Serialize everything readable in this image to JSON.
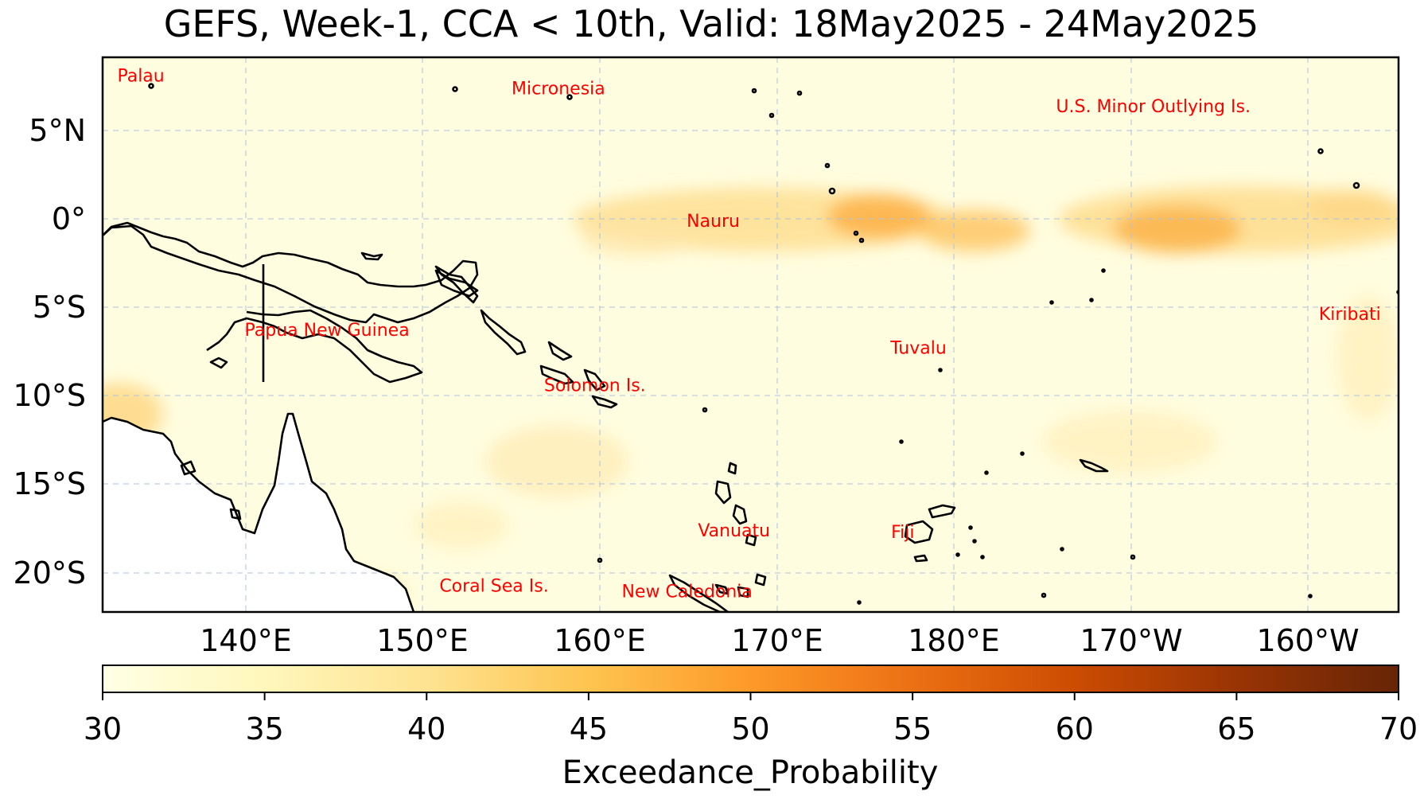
{
  "title": "GEFS, Week-1, CCA < 10th, Valid: 18May2025 - 24May2025",
  "map": {
    "lat_ticks": [
      "5°N",
      "0°",
      "5°S",
      "10°S",
      "15°S",
      "20°S"
    ],
    "lon_ticks": [
      "140°E",
      "150°E",
      "160°E",
      "170°E",
      "180°E",
      "170°W",
      "160°W"
    ],
    "countries": [
      {
        "name": "Palau",
        "lon": 134.2,
        "lat": 7.9
      },
      {
        "name": "Micronesia",
        "lon": 158.2,
        "lat": 7.2
      },
      {
        "name": "U.S. Minor Outlying Is.",
        "lon": -167.6,
        "lat": 6.2
      },
      {
        "name": "Nauru",
        "lon": 167.1,
        "lat": -0.2
      },
      {
        "name": "Papua New Guinea",
        "lon": 144.9,
        "lat": -6.3
      },
      {
        "name": "Kiribati",
        "lon": -156.3,
        "lat": -5.4
      },
      {
        "name": "Tuvalu",
        "lon": 178.9,
        "lat": -7.3
      },
      {
        "name": "Solomon Is.",
        "lon": 160.3,
        "lat": -9.4
      },
      {
        "name": "Vanuatu",
        "lon": 168.3,
        "lat": -17.5
      },
      {
        "name": "Fiji",
        "lon": 178.0,
        "lat": -17.6
      },
      {
        "name": "Coral Sea Is.",
        "lon": 154.5,
        "lat": -20.6
      },
      {
        "name": "New Caledonia",
        "lon": 165.6,
        "lat": -20.9
      }
    ],
    "land_color": "#ffffff",
    "ocean_base_color": "#fffde0"
  },
  "colorbar": {
    "label": "Exceedance_Probability",
    "ticks": [
      "30",
      "35",
      "40",
      "45",
      "50",
      "55",
      "60",
      "65",
      "70"
    ],
    "min": 30,
    "max": 70,
    "colormap": "YlOrBr",
    "colors": [
      "#ffffe5",
      "#fff7bc",
      "#fee391",
      "#fec44f",
      "#fe9929",
      "#ec7014",
      "#cc4c02",
      "#993404",
      "#662506"
    ]
  },
  "chart_data": {
    "type": "heatmap",
    "title": "GEFS, Week-1, CCA < 10th, Valid: 18May2025 - 24May2025",
    "variable": "Exceedance_Probability",
    "xlim": [
      "132°E",
      "153.5°W"
    ],
    "ylim": [
      "22°S",
      "9°N"
    ],
    "value_range": [
      30,
      70
    ],
    "features": [
      {
        "name": "equatorial band",
        "lon": [
          162,
          206
        ],
        "lat": [
          -2,
          1.5
        ],
        "value": 36
      },
      {
        "name": "max near 176°E",
        "lon": 176,
        "lat": 0,
        "value": 41
      },
      {
        "name": "max near 168°W",
        "lon": 192,
        "lat": -0.7,
        "value": 41
      },
      {
        "name": "Gulf of Carpentaria",
        "lon": 133,
        "lat": -11,
        "value": 35
      }
    ]
  }
}
